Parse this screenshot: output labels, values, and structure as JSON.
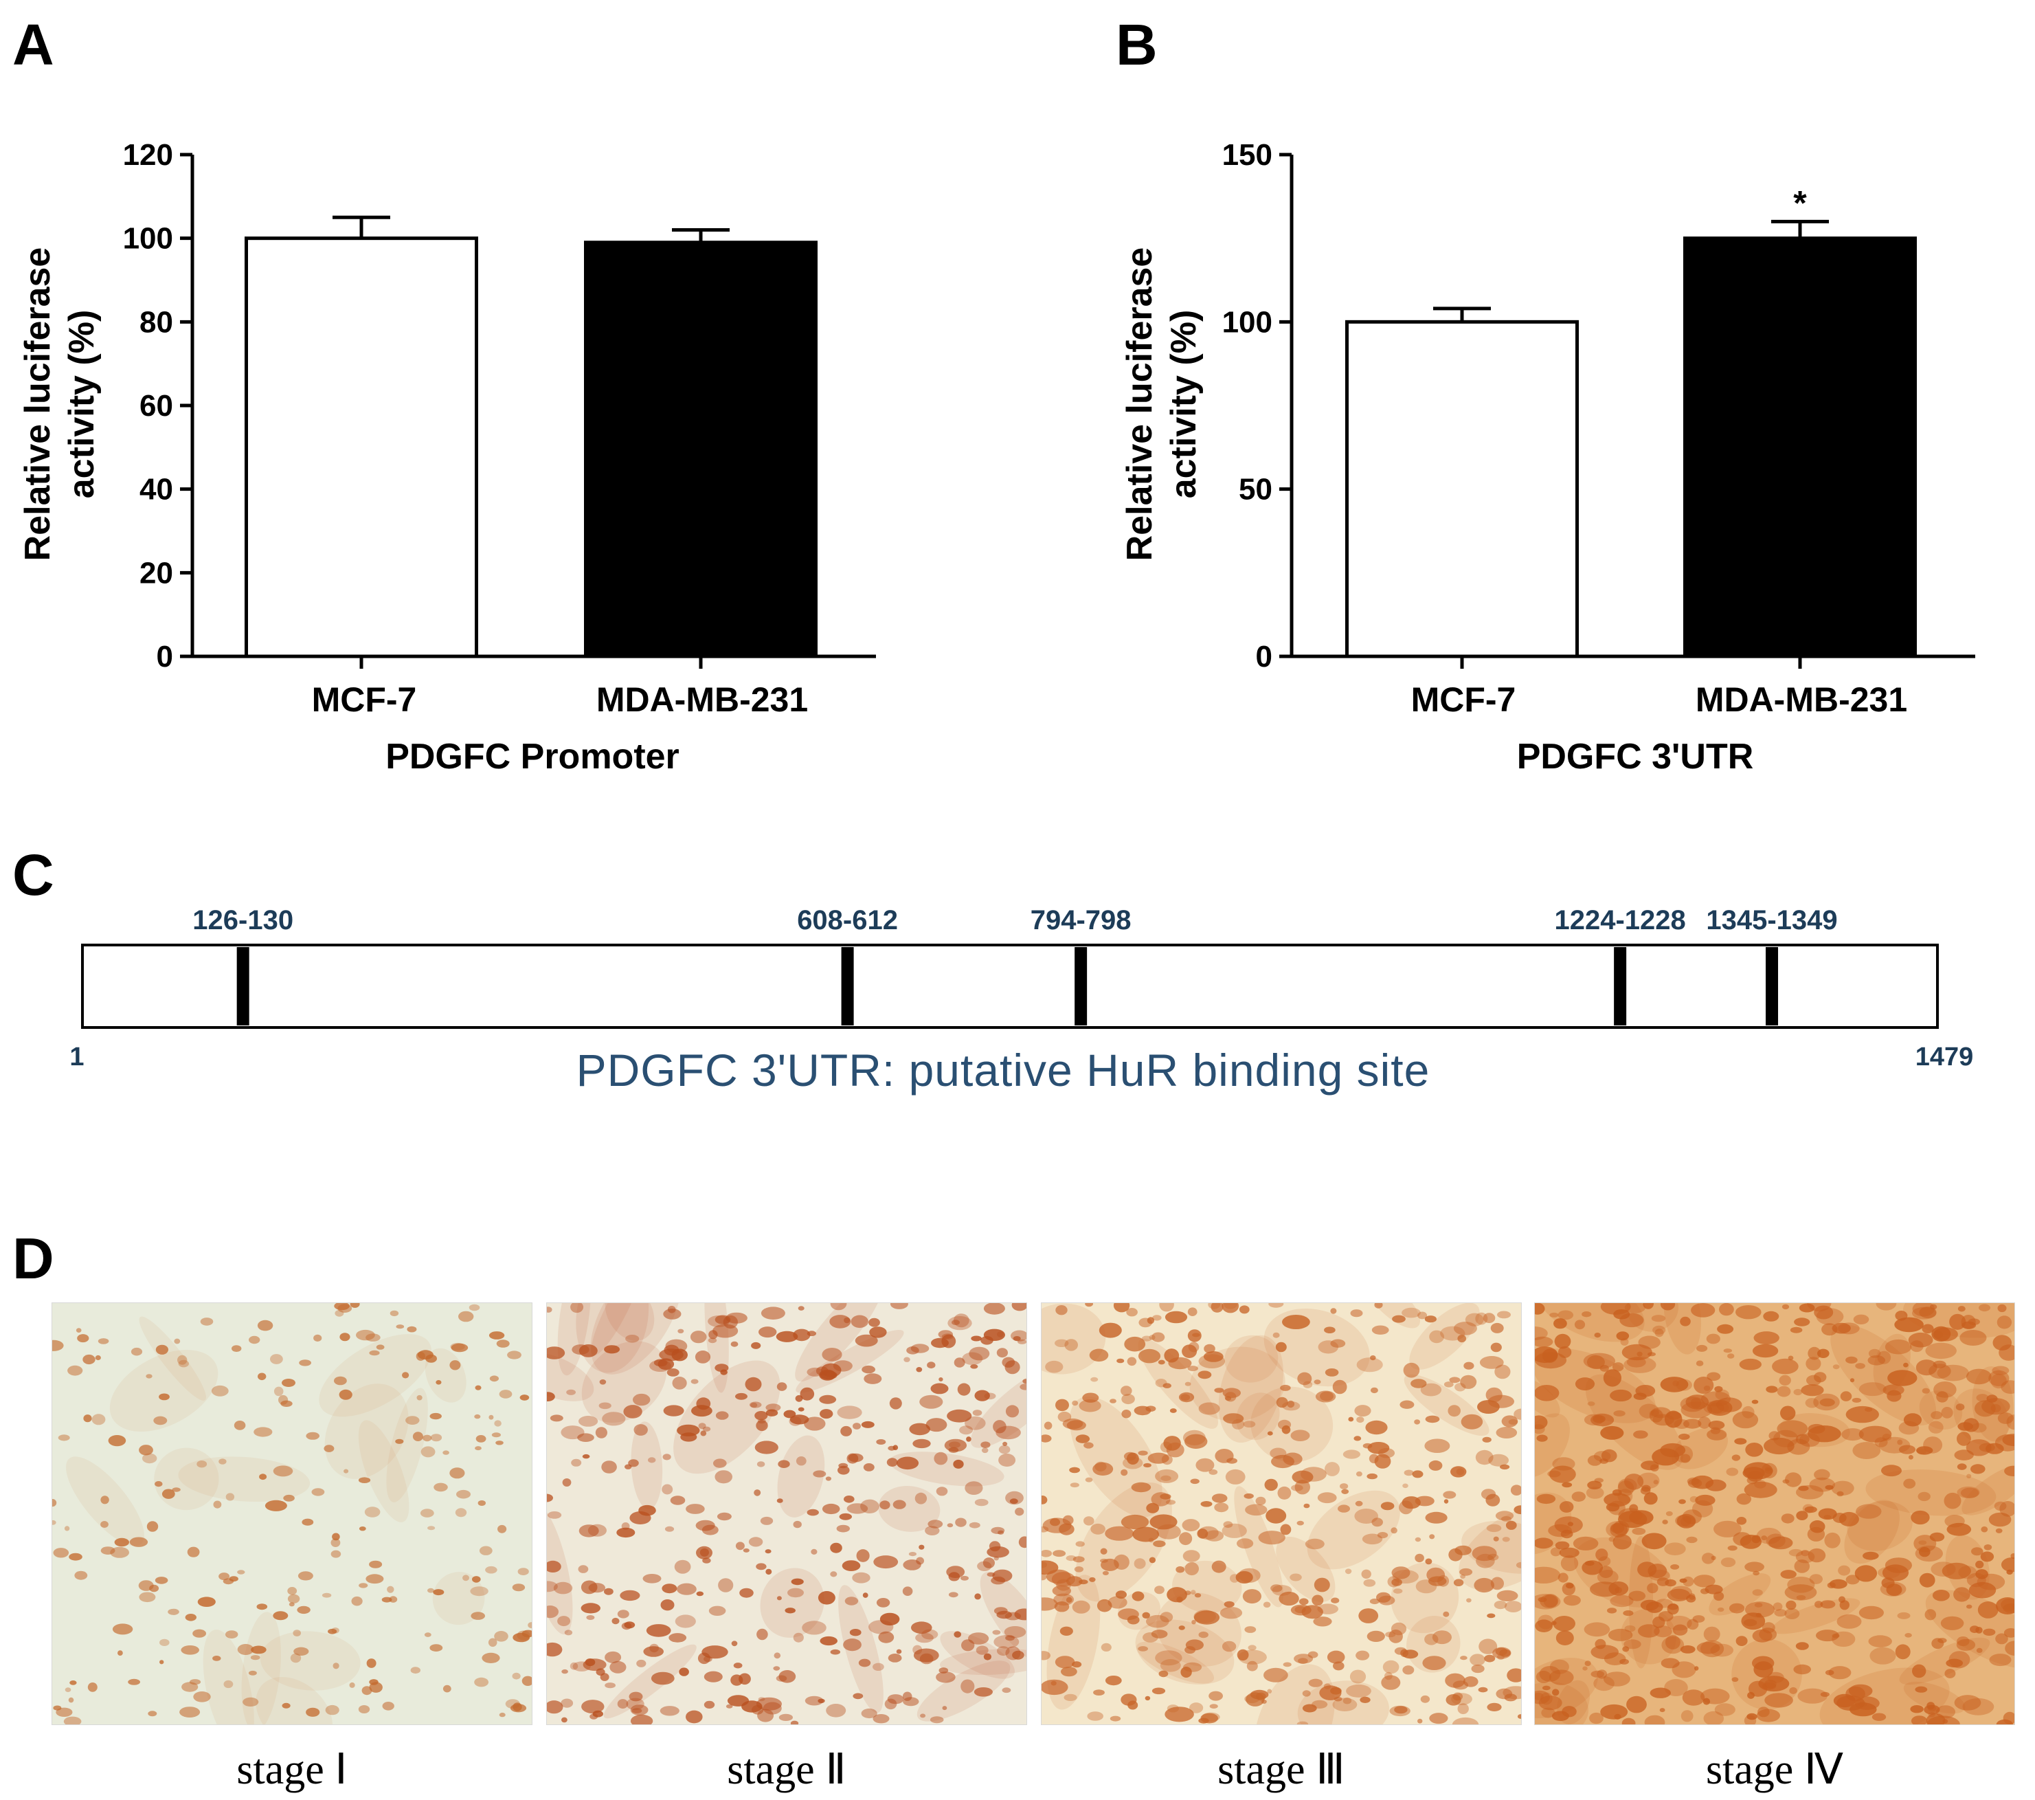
{
  "panels": {
    "a": "A",
    "b": "B",
    "c": "C",
    "d": "D"
  },
  "chart_data": [
    {
      "type": "bar",
      "categories": [
        "MCF-7",
        "MDA-MB-231"
      ],
      "values": [
        100,
        99
      ],
      "errors": [
        5,
        3
      ],
      "significance": [
        "",
        ""
      ],
      "ylabel_line1": "Relative luciferase",
      "ylabel_line2": "activity (%)",
      "xlabel": "PDGFC Promoter",
      "ylim": [
        0,
        120
      ],
      "yticks": [
        0,
        20,
        40,
        60,
        80,
        100,
        120
      ],
      "bar_colors": [
        "#ffffff",
        "#000000"
      ]
    },
    {
      "type": "bar",
      "categories": [
        "MCF-7",
        "MDA-MB-231"
      ],
      "values": [
        100,
        125
      ],
      "errors": [
        4,
        5
      ],
      "significance": [
        "",
        "*"
      ],
      "ylabel_line1": "Relative luciferase",
      "ylabel_line2": "activity (%)",
      "xlabel": "PDGFC 3'UTR",
      "ylim": [
        0,
        150
      ],
      "yticks": [
        0,
        50,
        100,
        150
      ],
      "bar_colors": [
        "#ffffff",
        "#000000"
      ]
    }
  ],
  "utr_map": {
    "title": "PDGFC 3'UTR: putative HuR binding site",
    "start_label": "1",
    "end_label": "1479",
    "length": 1479,
    "sites": [
      {
        "label": "126-130",
        "pos": 128
      },
      {
        "label": "608-612",
        "pos": 610
      },
      {
        "label": "794-798",
        "pos": 796
      },
      {
        "label": "1224-1228",
        "pos": 1226
      },
      {
        "label": "1345-1349",
        "pos": 1347
      }
    ]
  },
  "ihc": {
    "stages": [
      {
        "label": "stage Ⅰ",
        "intensity": 0.2,
        "bg": "#e8ebdb",
        "stain": "#c46a2e"
      },
      {
        "label": "stage Ⅱ",
        "intensity": 0.55,
        "bg": "#efe9d9",
        "stain": "#b9501f"
      },
      {
        "label": "stage Ⅲ",
        "intensity": 0.7,
        "bg": "#f4e7cb",
        "stain": "#c8662a"
      },
      {
        "label": "stage Ⅳ",
        "intensity": 0.95,
        "bg": "#e7b57c",
        "stain": "#c8601f"
      }
    ]
  }
}
